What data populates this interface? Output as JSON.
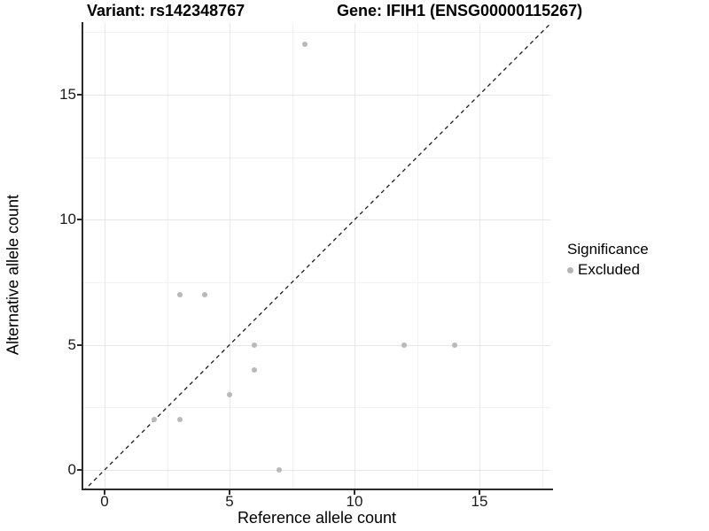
{
  "header": {
    "title_left": "Variant: rs142348767",
    "title_right": "Gene: IFIH1 (ENSG00000115267)"
  },
  "chart_data": {
    "type": "scatter",
    "title": "Variant: rs142348767  Gene: IFIH1 (ENSG00000115267)",
    "xlabel": "Reference allele count",
    "ylabel": "Alternative allele count",
    "xticks": [
      0,
      5,
      10,
      15
    ],
    "yticks": [
      0,
      5,
      10,
      15
    ],
    "x_minor_breaks": [
      2.5,
      7.5,
      12.5,
      17.5
    ],
    "y_minor_breaks": [
      2.5,
      7.5,
      12.5,
      17.5
    ],
    "xlim": [
      -0.85,
      17.85
    ],
    "ylim": [
      -0.85,
      17.85
    ],
    "grid": "major+minor",
    "legend": {
      "position": "right",
      "title": "Significance",
      "entries": [
        {
          "label": "Excluded",
          "color": "#b4b4b4"
        }
      ]
    },
    "identity_line": {
      "style": "dashed",
      "slope": 1,
      "intercept": 0,
      "color": "#1a1a1a"
    },
    "series": [
      {
        "name": "Excluded",
        "color": "#b9b9b9",
        "points": [
          [
            2,
            2
          ],
          [
            3,
            2
          ],
          [
            3,
            7
          ],
          [
            4,
            7
          ],
          [
            5,
            3
          ],
          [
            6,
            4
          ],
          [
            6,
            5
          ],
          [
            7,
            0
          ],
          [
            8,
            17
          ],
          [
            12,
            5
          ],
          [
            14,
            5
          ]
        ]
      }
    ]
  },
  "colors": {
    "background": "#ffffff",
    "axis_line": "#2b2b2b",
    "grid_major": "#e7e7e7",
    "grid_minor": "#f2f2f2",
    "point": "#b9b9b9",
    "text": "#000000"
  }
}
